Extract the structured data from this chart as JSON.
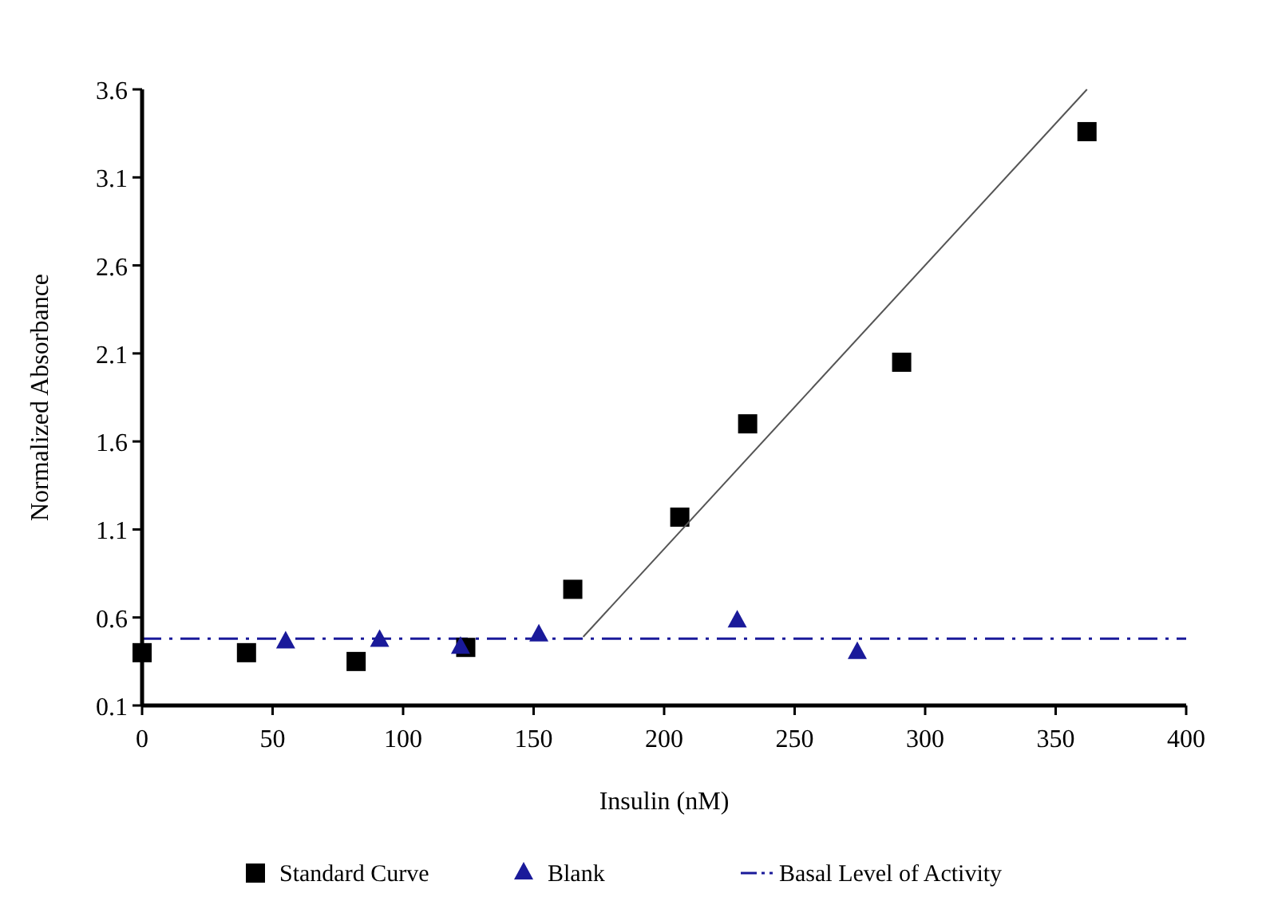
{
  "chart_data": {
    "type": "scatter",
    "xlabel": "Insulin (nM)",
    "ylabel": "Normalized Absorbance",
    "xlim": [
      0,
      400
    ],
    "xticks": [
      0,
      50,
      100,
      150,
      200,
      250,
      300,
      350,
      400
    ],
    "ylim": [
      0.1,
      3.6
    ],
    "yticks": [
      0.1,
      0.6,
      1.1,
      1.6,
      2.1,
      2.6,
      3.1,
      3.6
    ],
    "grid": false,
    "legend": "bottom",
    "series": [
      {
        "name": "Standard Curve",
        "marker": "square",
        "color": "#000000",
        "x": [
          0,
          40,
          82,
          124,
          165,
          206,
          232,
          291,
          362
        ],
        "values": [
          0.4,
          0.4,
          0.35,
          0.43,
          0.76,
          1.17,
          1.7,
          2.05,
          3.36
        ]
      },
      {
        "name": "Blank",
        "marker": "triangle",
        "color": "#1a1a9a",
        "x": [
          55,
          91,
          122,
          152,
          228,
          274
        ],
        "values": [
          0.46,
          0.47,
          0.43,
          0.5,
          0.58,
          0.4
        ]
      },
      {
        "type": "line",
        "marker": "none",
        "color": "#555555",
        "x": [
          169,
          362
        ],
        "values": [
          0.49,
          3.6
        ]
      }
    ],
    "ref_lines": [
      {
        "axis": "y",
        "value": 0.48,
        "label": "Basal Level of Activity",
        "color": "#1a1a9a",
        "line_style": "dashdot"
      }
    ]
  }
}
